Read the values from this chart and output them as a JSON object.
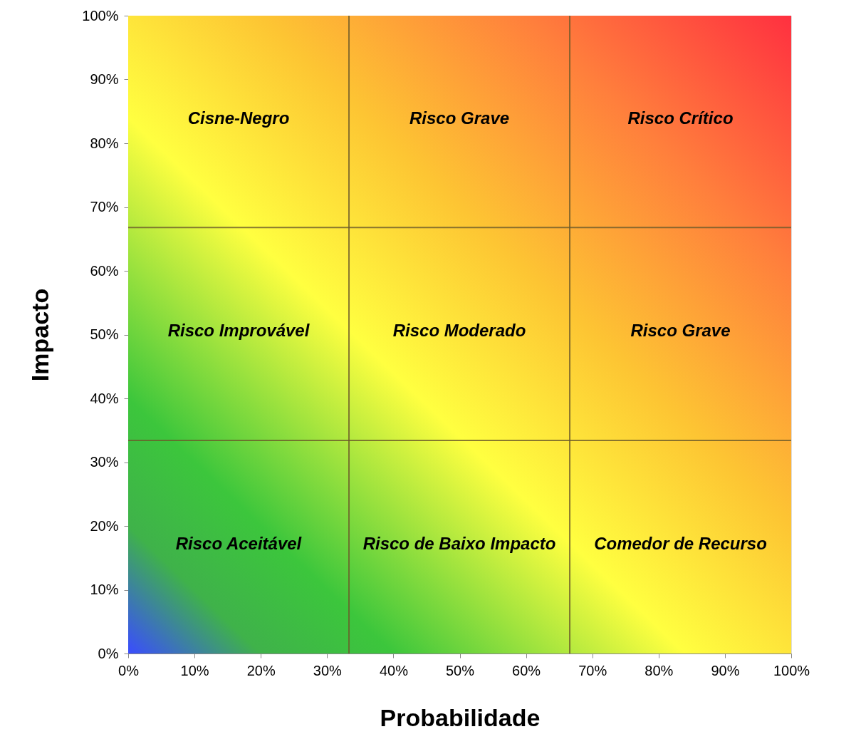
{
  "chart_data": {
    "type": "scatter",
    "xlabel": "Probabilidade",
    "ylabel": "Impacto",
    "xlim": [
      0,
      100
    ],
    "ylim": [
      0,
      100
    ],
    "xticks": [
      {
        "value": 0,
        "label": "0%"
      },
      {
        "value": 10,
        "label": "10%"
      },
      {
        "value": 20,
        "label": "20%"
      },
      {
        "value": 30,
        "label": "30%"
      },
      {
        "value": 40,
        "label": "40%"
      },
      {
        "value": 50,
        "label": "50%"
      },
      {
        "value": 60,
        "label": "60%"
      },
      {
        "value": 70,
        "label": "70%"
      },
      {
        "value": 80,
        "label": "80%"
      },
      {
        "value": 90,
        "label": "90%"
      },
      {
        "value": 100,
        "label": "100%"
      }
    ],
    "yticks": [
      {
        "value": 0,
        "label": "0%"
      },
      {
        "value": 10,
        "label": "10%"
      },
      {
        "value": 20,
        "label": "20%"
      },
      {
        "value": 30,
        "label": "30%"
      },
      {
        "value": 40,
        "label": "40%"
      },
      {
        "value": 50,
        "label": "50%"
      },
      {
        "value": 60,
        "label": "60%"
      },
      {
        "value": 70,
        "label": "70%"
      },
      {
        "value": 80,
        "label": "80%"
      },
      {
        "value": 90,
        "label": "90%"
      },
      {
        "value": 100,
        "label": "100%"
      }
    ],
    "ref_lines": [
      {
        "axis": "x",
        "value": 33.3,
        "color": "#6b5a2a"
      },
      {
        "axis": "x",
        "value": 66.6,
        "color": "#6b5a2a"
      },
      {
        "axis": "y",
        "value": 33.4,
        "color": "#6b5a2a"
      },
      {
        "axis": "y",
        "value": 66.8,
        "color": "#6b5a2a"
      }
    ],
    "annotations": [
      "Cisne-Negro",
      "Risco Grave",
      "Risco Crítico",
      "Risco Improvável",
      "Risco Moderado",
      "Risco Grave",
      "Risco Aceitável",
      "Risco de Baixo Impacto",
      "Comedor de Recurso"
    ]
  }
}
